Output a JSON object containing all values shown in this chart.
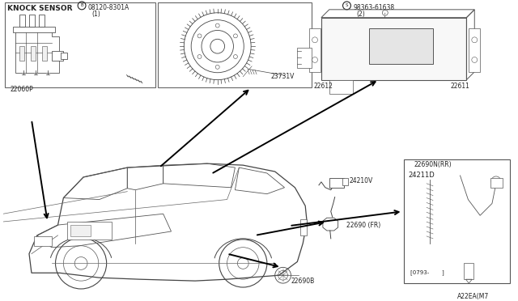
{
  "bg_color": "#ffffff",
  "figsize": [
    6.4,
    3.72
  ],
  "dpi": 100,
  "line_color": "#333333",
  "text_color": "#222222",
  "labels": {
    "knock_sensor": "KNOCK SENSOR",
    "bolt_label": "B 08120-8301A",
    "bolt_qty": "(1)",
    "part_22060P": "22060P",
    "part_23731V": "23731V",
    "screw_label": "S 98363-61638",
    "screw_qty": "(2)",
    "part_22611": "22611",
    "part_22612": "22612",
    "part_24210V": "24210V",
    "part_22690FR": "22690 (FR)",
    "part_22690B": "22690B",
    "part_22690NRR": "22690N(RR)",
    "part_24211D": "24211D",
    "date_code": "[0793-       ]",
    "diagram_code": "A22EA(M7"
  }
}
